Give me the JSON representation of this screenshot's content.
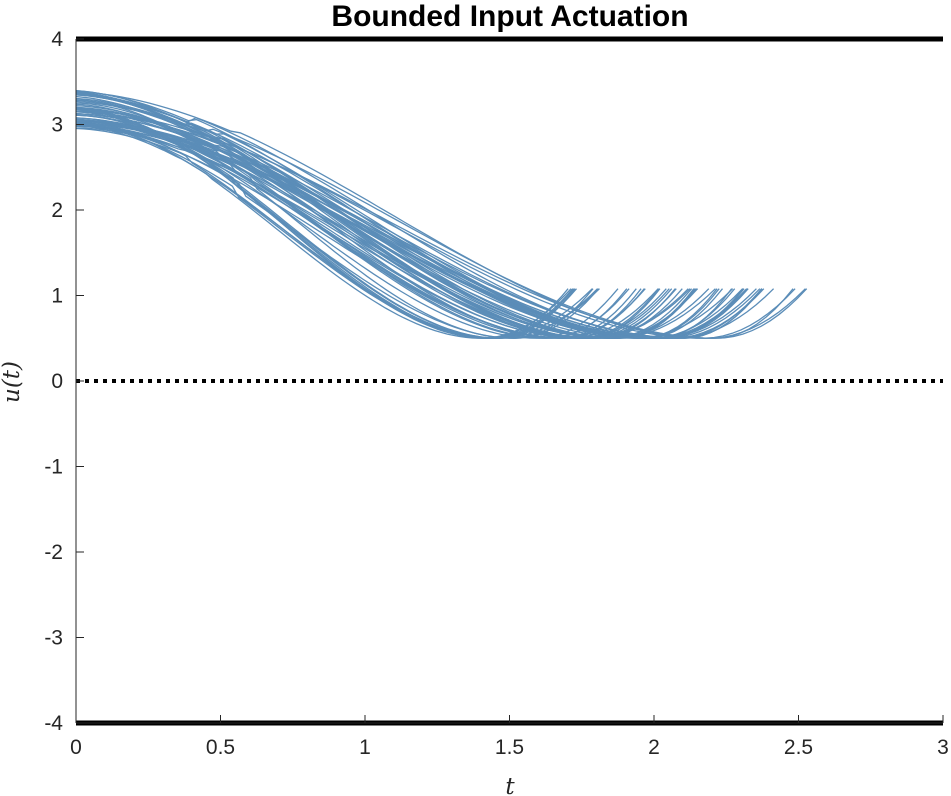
{
  "chart_data": {
    "type": "line",
    "title": "Bounded Input Actuation",
    "xlabel": "t",
    "ylabel": "u(t)",
    "xlim": [
      0,
      3
    ],
    "ylim": [
      -4,
      4
    ],
    "xticks": [
      "0",
      "0.5",
      "1",
      "1.5",
      "2",
      "2.5",
      "3"
    ],
    "yticks": [
      "-4",
      "-3",
      "-2",
      "-1",
      "0",
      "1",
      "2",
      "3",
      "4"
    ],
    "grid": false,
    "series_color": "#5b8db8",
    "upper_bound": 4,
    "lower_bound": -4,
    "reference_line": 0,
    "trajectory_family": {
      "count": 60,
      "u_start_range": [
        2.95,
        3.4
      ],
      "u_min": 0.5,
      "t_reach_min_range": [
        1.4,
        2.25
      ],
      "u_end": 1.08,
      "t_end_range": [
        1.8,
        2.6
      ]
    }
  }
}
